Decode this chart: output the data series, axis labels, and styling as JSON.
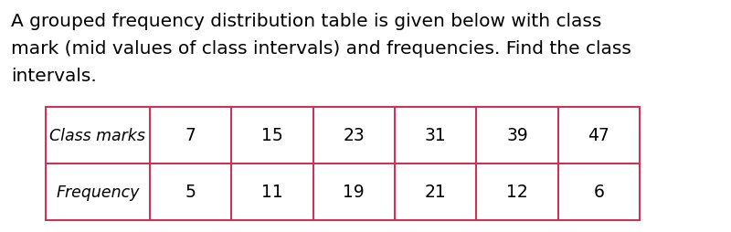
{
  "title_line1": "A grouped frequency distribution table is given below with class",
  "title_line2": "mark (mid values of class intervals) and frequencies. Find the class",
  "title_line3": "intervals.",
  "row1_header": "Class marks",
  "row2_header": "Frequency",
  "class_marks": [
    "7",
    "15",
    "23",
    "31",
    "39",
    "47"
  ],
  "frequencies": [
    "5",
    "11",
    "19",
    "21",
    "12",
    "6"
  ],
  "background_color": "#ffffff",
  "text_color": "#000000",
  "table_border_color": "#cc3355",
  "title_fontsize": 14.5,
  "table_fontsize": 13.5,
  "header_fontsize": 12.5
}
